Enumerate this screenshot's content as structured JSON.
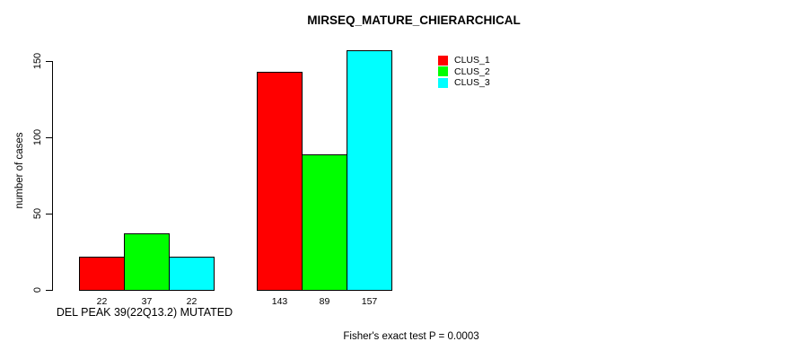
{
  "chart_data": {
    "type": "bar",
    "title": "MIRSEQ_MATURE_CHIERARCHICAL",
    "ylabel": "number of cases",
    "xlabel": "DEL PEAK 39(22Q13.2) MUTATED",
    "yticks": [
      0,
      50,
      100,
      150
    ],
    "ylim": [
      0,
      157
    ],
    "grid": false,
    "legend_position": "top-right",
    "categories": [
      "DEL PEAK 39(22Q13.2) MUTATED",
      ""
    ],
    "series": [
      {
        "name": "CLUS_1",
        "color": "#FF0000",
        "values": [
          22,
          143
        ]
      },
      {
        "name": "CLUS_2",
        "color": "#00FF00",
        "values": [
          37,
          89
        ]
      },
      {
        "name": "CLUS_3",
        "color": "#00FFFF",
        "values": [
          22,
          157
        ]
      }
    ],
    "bar_value_labels": [
      [
        22,
        37,
        22
      ],
      [
        143,
        89,
        157
      ]
    ],
    "annotation": "Fisher's exact test P = 0.0003"
  }
}
